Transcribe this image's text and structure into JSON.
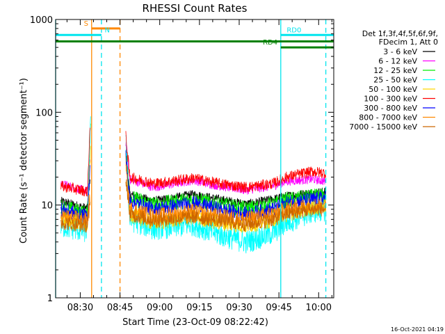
{
  "chart_data": {
    "type": "line",
    "title": "RHESSI Count Rates",
    "xlabel": "Start Time (23-Oct-09 08:22:42)",
    "ylabel": "Count Rate (s⁻¹ detector segment⁻¹)",
    "yscale": "log",
    "ylim": [
      1,
      1000
    ],
    "xlim_minutes": [
      -2,
      103
    ],
    "x_tick_labels": [
      "08:30",
      "08:45",
      "09:00",
      "09:15",
      "09:30",
      "09:45",
      "10:00"
    ],
    "x_tick_minutes": [
      7.3,
      22.3,
      37.3,
      52.3,
      67.3,
      82.3,
      97.3
    ],
    "y_tick_labels": [
      "1",
      "10",
      "100",
      "1000"
    ],
    "y_tick_values": [
      1,
      10,
      100,
      1000
    ],
    "legend_header": [
      "Det 1f,3f,4f,5f,6f,9f,",
      "FDecim 1, Att 0"
    ],
    "legend_position": "right",
    "series": [
      {
        "name": "3 - 6 keV",
        "color": "#000000",
        "segments": [
          [
            [
              0,
              11
            ],
            [
              10,
              9.2
            ],
            [
              11,
              20
            ]
          ],
          [
            [
              24.5,
              40
            ],
            [
              26,
              13
            ],
            [
              35,
              11
            ],
            [
              50,
              13
            ],
            [
              60,
              11.5
            ],
            [
              70,
              10.2
            ],
            [
              80,
              11.5
            ],
            [
              85,
              12.5
            ],
            [
              95,
              13.5
            ],
            [
              100,
              14
            ]
          ]
        ]
      },
      {
        "name": "6 - 12 keV",
        "color": "#ff00ff",
        "segments": [
          [
            [
              0,
              17
            ],
            [
              10,
              14
            ],
            [
              11,
              30
            ]
          ],
          [
            [
              24.5,
              48
            ],
            [
              26,
              19
            ],
            [
              35,
              15.5
            ],
            [
              50,
              18.5
            ],
            [
              60,
              16
            ],
            [
              70,
              14.5
            ],
            [
              80,
              16
            ],
            [
              85,
              18
            ],
            [
              95,
              19
            ],
            [
              100,
              18
            ]
          ]
        ]
      },
      {
        "name": "12 - 25 keV",
        "color": "#00ee00",
        "segments": [
          [
            [
              0,
              9.5
            ],
            [
              10,
              8
            ],
            [
              11.2,
              90
            ]
          ],
          [
            [
              24.5,
              40
            ],
            [
              26,
              12
            ],
            [
              35,
              10
            ],
            [
              50,
              11.5
            ],
            [
              60,
              10
            ],
            [
              70,
              9
            ],
            [
              80,
              10
            ],
            [
              85,
              11.2
            ],
            [
              95,
              12.2
            ],
            [
              100,
              12.5
            ]
          ]
        ]
      },
      {
        "name": "25 - 50 keV",
        "color": "#00ffff",
        "segments": [
          [
            [
              0,
              6
            ],
            [
              10,
              5.2
            ],
            [
              11.2,
              100
            ]
          ],
          [
            [
              24.5,
              52
            ],
            [
              26,
              7
            ],
            [
              35,
              5.6
            ],
            [
              50,
              6.2
            ],
            [
              60,
              4.8
            ],
            [
              70,
              4
            ],
            [
              80,
              5
            ],
            [
              85,
              6.5
            ],
            [
              95,
              8.5
            ],
            [
              100,
              9
            ]
          ]
        ]
      },
      {
        "name": "50 - 100 keV",
        "color": "#ffd700",
        "segments": [
          [
            [
              0,
              7
            ],
            [
              10,
              6.2
            ],
            [
              11.2,
              40
            ]
          ],
          [
            [
              24.5,
              30
            ],
            [
              26,
              8
            ],
            [
              35,
              6.5
            ],
            [
              50,
              7.5
            ],
            [
              60,
              6.5
            ],
            [
              70,
              6
            ],
            [
              80,
              7
            ],
            [
              85,
              8
            ],
            [
              95,
              9.5
            ],
            [
              100,
              10
            ]
          ]
        ]
      },
      {
        "name": "100 - 300 keV",
        "color": "#ff0000",
        "segments": [
          [
            [
              0,
              16
            ],
            [
              10,
              14
            ],
            [
              11,
              70
            ]
          ],
          [
            [
              24.5,
              55
            ],
            [
              26,
              20
            ],
            [
              35,
              17
            ],
            [
              50,
              19.5
            ],
            [
              60,
              17
            ],
            [
              70,
              15.5
            ],
            [
              80,
              17
            ],
            [
              85,
              20
            ],
            [
              95,
              23
            ],
            [
              100,
              22
            ]
          ]
        ]
      },
      {
        "name": "300 - 800 keV",
        "color": "#0000ff",
        "segments": [
          [
            [
              0,
              9
            ],
            [
              10,
              7.5
            ],
            [
              11,
              25
            ]
          ],
          [
            [
              24.5,
              35
            ],
            [
              26,
              11
            ],
            [
              35,
              9
            ],
            [
              50,
              10.5
            ],
            [
              60,
              9
            ],
            [
              70,
              8
            ],
            [
              80,
              9
            ],
            [
              85,
              10.5
            ],
            [
              95,
              11.5
            ],
            [
              100,
              12
            ]
          ]
        ]
      },
      {
        "name": "800 - 7000 keV",
        "color": "#ff8800",
        "segments": [
          [
            [
              0,
              7.5
            ],
            [
              10,
              6.8
            ],
            [
              11,
              12
            ]
          ],
          [
            [
              24.5,
              25
            ],
            [
              26,
              9
            ],
            [
              35,
              7.5
            ],
            [
              50,
              8.5
            ],
            [
              60,
              7.5
            ],
            [
              70,
              7
            ],
            [
              80,
              8
            ],
            [
              85,
              9
            ],
            [
              95,
              10
            ],
            [
              100,
              9.5
            ]
          ]
        ]
      },
      {
        "name": "7000 - 15000 keV",
        "color": "#cc6600",
        "segments": [
          [
            [
              0,
              6.5
            ],
            [
              10,
              6
            ],
            [
              11,
              10
            ]
          ],
          [
            [
              24.5,
              20
            ],
            [
              26,
              8
            ],
            [
              35,
              6.8
            ],
            [
              50,
              7.5
            ],
            [
              60,
              6.8
            ],
            [
              70,
              6.2
            ],
            [
              80,
              7
            ],
            [
              85,
              8
            ],
            [
              95,
              9
            ],
            [
              100,
              9
            ]
          ]
        ]
      }
    ],
    "flag_bars": [
      {
        "label": "S",
        "color": "#ff8800",
        "x_start": 11.6,
        "x_end": 22.3,
        "y_value": 800,
        "label_x_minutes": 9.5
      },
      {
        "label": "N",
        "color": "#00e5ee",
        "x_start": -2,
        "x_end": 15.3,
        "y_value": 680,
        "label_x_minutes": 17.5
      },
      {
        "label": "RD0",
        "color": "#00e5ee",
        "x_start": 83,
        "x_end": 103,
        "y_value": 680,
        "label_x_minutes": 88
      },
      {
        "label": "",
        "color": "#008000",
        "x_start": -2,
        "x_end": 103,
        "y_value": 580
      },
      {
        "label": "RD4",
        "color": "#008000",
        "x_start": 83,
        "x_end": 103,
        "y_value": 500,
        "label_x_minutes": 79
      }
    ],
    "vertical_markers": [
      {
        "x_minutes": -2,
        "color": "#00e5ee",
        "style": "solid"
      },
      {
        "x_minutes": 11.6,
        "color": "#ff8800",
        "style": "solid"
      },
      {
        "x_minutes": 15.3,
        "color": "#00e5ee",
        "style": "dashed"
      },
      {
        "x_minutes": 22.3,
        "color": "#ff8800",
        "style": "dashed"
      },
      {
        "x_minutes": 83,
        "color": "#00e5ee",
        "style": "solid"
      },
      {
        "x_minutes": 100,
        "color": "#00e5ee",
        "style": "dashed"
      }
    ],
    "footer_timestamp": "16-Oct-2021 04:19"
  }
}
